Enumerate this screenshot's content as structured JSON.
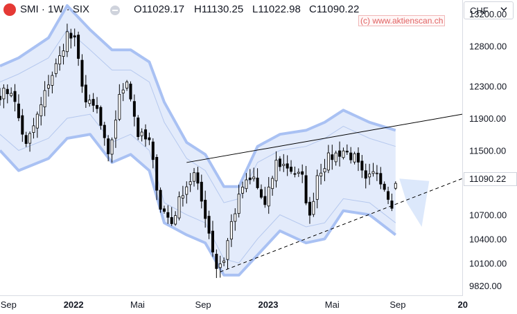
{
  "header": {
    "symbol": "SMI · 1W · SIX",
    "open": "O11029.17",
    "high": "H11130.25",
    "low": "L11022.98",
    "close": "C11090.22",
    "logo_icon": "smi-logo-icon",
    "visibility_icon": "eye-toggle-icon"
  },
  "watermark": "(c) www.aktienscan.ch",
  "currency": {
    "label": "CHF",
    "icon": "chevron-down-icon"
  },
  "colors": {
    "up": "#ffffff",
    "down": "#000000",
    "band_fill": "#e3ebfb",
    "band_outer": "#a9c1f3",
    "band_inner": "#b5c8ee",
    "projection": "#dce8fb",
    "trendline": "#000000"
  },
  "chart_data": {
    "type": "candlestick",
    "title": "",
    "xlabel": "",
    "ylabel": "",
    "ylim": [
      9690,
      13370
    ],
    "yticks": [
      9820,
      10100,
      10400,
      10700,
      11090.22,
      11500,
      11900,
      12300,
      12800,
      13200
    ],
    "ytick_labels": [
      "9820.00",
      "10100.00",
      "10400.00",
      "10700.00",
      "11090.22",
      "11500.00",
      "11900.00",
      "12300.00",
      "12800.00",
      "13200.00"
    ],
    "x_range": [
      "2021-08-16",
      "2023-12-31"
    ],
    "xticks": [
      {
        "date": "2021-09-01",
        "label": "Sep",
        "bold": false
      },
      {
        "date": "2022-01-01",
        "label": "2022",
        "bold": true
      },
      {
        "date": "2022-05-01",
        "label": "Mai",
        "bold": false
      },
      {
        "date": "2022-09-01",
        "label": "Sep",
        "bold": false
      },
      {
        "date": "2023-01-01",
        "label": "2023",
        "bold": true
      },
      {
        "date": "2023-05-01",
        "label": "Mai",
        "bold": false
      },
      {
        "date": "2023-09-01",
        "label": "Sep",
        "bold": false
      },
      {
        "date": "2024-01-01",
        "label": "20",
        "bold": true
      }
    ],
    "last_price": 11090.22,
    "anchors": [
      [
        "2021-08-16",
        12200
      ],
      [
        "2021-09-06",
        12250
      ],
      [
        "2021-09-20",
        11900
      ],
      [
        "2021-10-04",
        11550
      ],
      [
        "2021-10-18",
        11800
      ],
      [
        "2021-11-01",
        12050
      ],
      [
        "2021-11-15",
        12350
      ],
      [
        "2021-12-06",
        12650
      ],
      [
        "2021-12-20",
        12950
      ],
      [
        "2022-01-03",
        12850
      ],
      [
        "2022-01-24",
        12100
      ],
      [
        "2022-02-14",
        12000
      ],
      [
        "2022-03-07",
        11400
      ],
      [
        "2022-03-28",
        12150
      ],
      [
        "2022-04-11",
        12400
      ],
      [
        "2022-05-02",
        11700
      ],
      [
        "2022-05-23",
        11600
      ],
      [
        "2022-06-13",
        10800
      ],
      [
        "2022-07-04",
        10600
      ],
      [
        "2022-07-25",
        11000
      ],
      [
        "2022-08-15",
        11200
      ],
      [
        "2022-09-05",
        10700
      ],
      [
        "2022-09-26",
        10050
      ],
      [
        "2022-10-10",
        10150
      ],
      [
        "2022-10-24",
        10600
      ],
      [
        "2022-11-14",
        11050
      ],
      [
        "2022-12-05",
        11150
      ],
      [
        "2022-12-26",
        10800
      ],
      [
        "2023-01-16",
        11350
      ],
      [
        "2023-02-06",
        11300
      ],
      [
        "2023-03-06",
        11150
      ],
      [
        "2023-03-20",
        10650
      ],
      [
        "2023-04-03",
        11200
      ],
      [
        "2023-04-24",
        11400
      ],
      [
        "2023-05-22",
        11500
      ],
      [
        "2023-06-12",
        11400
      ],
      [
        "2023-07-03",
        11100
      ],
      [
        "2023-07-24",
        11250
      ],
      [
        "2023-08-07",
        11050
      ],
      [
        "2023-08-21",
        10850
      ],
      [
        "2023-08-28",
        11090
      ]
    ],
    "bands": {
      "upper": [
        [
          "2021-08-16",
          12550
        ],
        [
          "2021-09-20",
          12650
        ],
        [
          "2021-11-15",
          12900
        ],
        [
          "2021-12-20",
          13300
        ],
        [
          "2022-02-01",
          13000
        ],
        [
          "2022-03-14",
          12750
        ],
        [
          "2022-04-18",
          12750
        ],
        [
          "2022-05-23",
          12600
        ],
        [
          "2022-06-20",
          12100
        ],
        [
          "2022-08-01",
          11600
        ],
        [
          "2022-09-05",
          11450
        ],
        [
          "2022-10-10",
          11050
        ],
        [
          "2022-11-07",
          11050
        ],
        [
          "2022-12-12",
          11550
        ],
        [
          "2023-01-23",
          11700
        ],
        [
          "2023-03-13",
          11750
        ],
        [
          "2023-04-17",
          11850
        ],
        [
          "2023-05-22",
          12000
        ],
        [
          "2023-07-10",
          11850
        ],
        [
          "2023-08-28",
          11750
        ]
      ],
      "upper_inner": [
        [
          "2021-08-16",
          12350
        ],
        [
          "2021-09-20",
          12450
        ],
        [
          "2021-11-15",
          12650
        ],
        [
          "2021-12-20",
          13000
        ],
        [
          "2022-02-01",
          12750
        ],
        [
          "2022-03-14",
          12500
        ],
        [
          "2022-04-18",
          12500
        ],
        [
          "2022-05-23",
          12350
        ],
        [
          "2022-06-20",
          11850
        ],
        [
          "2022-08-01",
          11400
        ],
        [
          "2022-09-05",
          11250
        ],
        [
          "2022-10-10",
          10850
        ],
        [
          "2022-11-07",
          10900
        ],
        [
          "2022-12-12",
          11350
        ],
        [
          "2023-01-23",
          11500
        ],
        [
          "2023-03-13",
          11550
        ],
        [
          "2023-04-17",
          11650
        ],
        [
          "2023-05-22",
          11800
        ],
        [
          "2023-07-10",
          11650
        ],
        [
          "2023-08-28",
          11550
        ]
      ],
      "lower_inner": [
        [
          "2021-08-16",
          11700
        ],
        [
          "2021-09-20",
          11500
        ],
        [
          "2021-11-15",
          11650
        ],
        [
          "2021-12-20",
          11900
        ],
        [
          "2022-02-01",
          11950
        ],
        [
          "2022-03-14",
          11600
        ],
        [
          "2022-04-18",
          11700
        ],
        [
          "2022-05-23",
          11500
        ],
        [
          "2022-06-20",
          10850
        ],
        [
          "2022-08-01",
          10700
        ],
        [
          "2022-09-05",
          10600
        ],
        [
          "2022-10-10",
          10150
        ],
        [
          "2022-11-07",
          10100
        ],
        [
          "2022-12-12",
          10400
        ],
        [
          "2023-01-23",
          10700
        ],
        [
          "2023-03-13",
          10550
        ],
        [
          "2023-04-17",
          10600
        ],
        [
          "2023-05-22",
          10900
        ],
        [
          "2023-07-10",
          10850
        ],
        [
          "2023-08-28",
          10600
        ]
      ],
      "lower": [
        [
          "2021-08-16",
          11500
        ],
        [
          "2021-09-20",
          11250
        ],
        [
          "2021-11-15",
          11400
        ],
        [
          "2021-12-20",
          11650
        ],
        [
          "2022-02-01",
          11700
        ],
        [
          "2022-03-14",
          11350
        ],
        [
          "2022-04-18",
          11450
        ],
        [
          "2022-05-23",
          11250
        ],
        [
          "2022-06-20",
          10600
        ],
        [
          "2022-08-01",
          10450
        ],
        [
          "2022-09-05",
          10350
        ],
        [
          "2022-10-10",
          9950
        ],
        [
          "2022-11-07",
          9950
        ],
        [
          "2022-12-12",
          10200
        ],
        [
          "2023-01-23",
          10500
        ],
        [
          "2023-03-13",
          10350
        ],
        [
          "2023-04-17",
          10400
        ],
        [
          "2023-05-22",
          10750
        ],
        [
          "2023-07-10",
          10700
        ],
        [
          "2023-08-28",
          10450
        ]
      ]
    },
    "projection": [
      [
        "2023-09-04",
        11150
      ],
      [
        "2023-10-30",
        11120
      ],
      [
        "2023-10-16",
        10550
      ],
      [
        "2023-09-18",
        10850
      ]
    ],
    "trendlines": [
      {
        "style": "solid",
        "from": [
          "2022-08-01",
          11350
        ],
        "to": [
          "2023-12-31",
          11950
        ]
      },
      {
        "style": "dashed",
        "from": [
          "2022-10-03",
          9990
        ],
        "to": [
          "2023-12-31",
          11150
        ]
      }
    ]
  }
}
